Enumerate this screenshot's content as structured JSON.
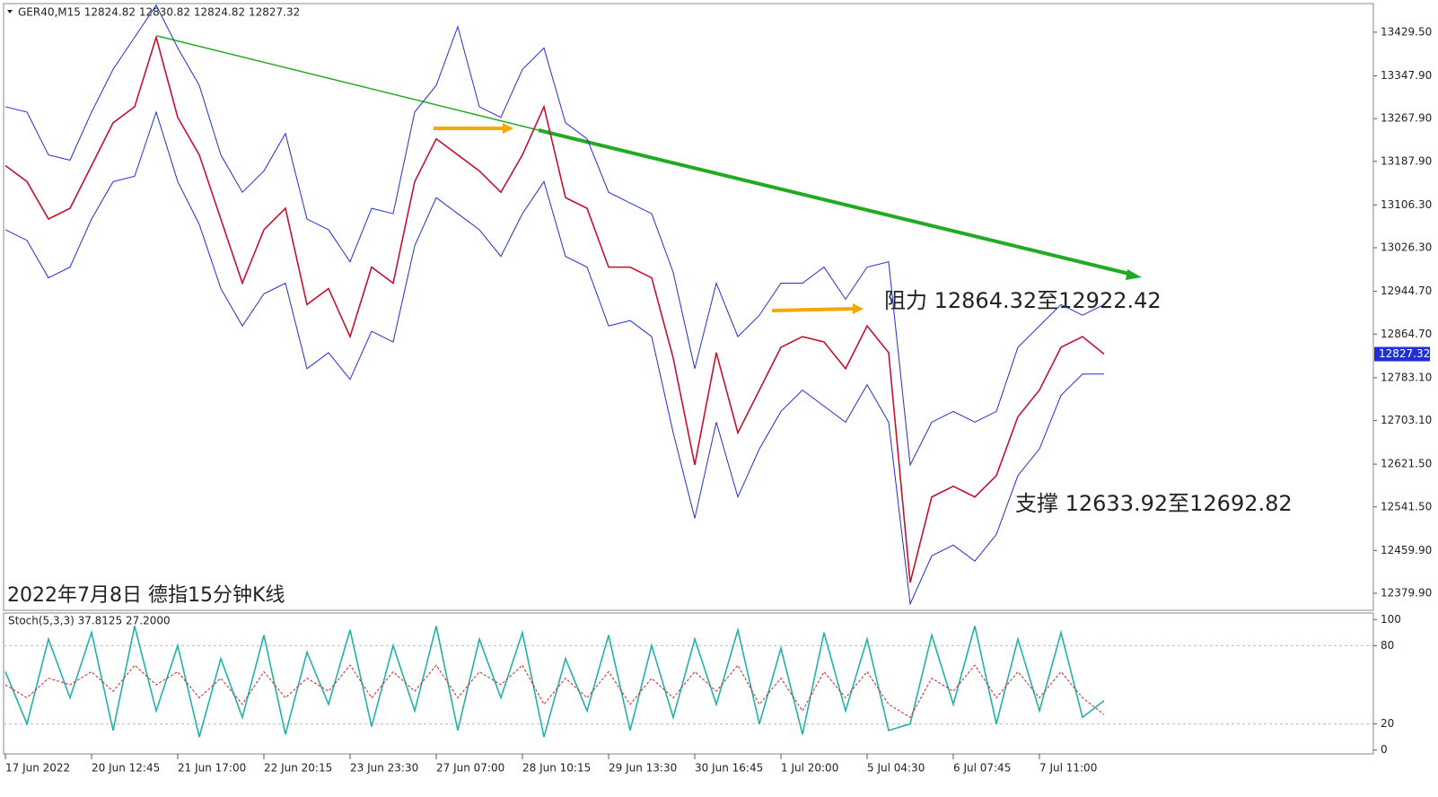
{
  "header": "GER40,M15  12824.82 12830.82 12824.82 12827.32",
  "chart_data": [
    {
      "type": "line",
      "annotations": [
        "阻力 12864.32至12922.42",
        "支撑 12633.92至12692.82",
        "2022年7月8日 德指15分钟K线"
      ],
      "ylim": [
        12348,
        13483
      ],
      "yticks": [
        {
          "value": 13429.5,
          "label": "13429.50"
        },
        {
          "value": 13347.9,
          "label": "13347.90"
        },
        {
          "value": 13267.9,
          "label": "13267.90"
        },
        {
          "value": 13187.9,
          "label": "13187.90"
        },
        {
          "value": 13106.3,
          "label": "13106.30"
        },
        {
          "value": 13026.3,
          "label": "13026.30"
        },
        {
          "value": 12944.7,
          "label": "12944.70"
        },
        {
          "value": 12864.7,
          "label": "12864.70"
        },
        {
          "value": 12783.1,
          "label": "12783.10"
        },
        {
          "value": 12703.1,
          "label": "12703.10"
        },
        {
          "value": 12621.5,
          "label": "12621.50"
        },
        {
          "value": 12541.5,
          "label": "12541.50"
        },
        {
          "value": 12459.9,
          "label": "12459.90"
        },
        {
          "value": 12379.9,
          "label": "12379.90"
        }
      ],
      "last_price": 12827.32,
      "series": [
        {
          "color": "#c8102e",
          "values": [
            13180,
            13150,
            13080,
            13100,
            13180,
            13260,
            13290,
            13420,
            13270,
            13200,
            13080,
            12960,
            13060,
            13100,
            12920,
            12950,
            12860,
            12990,
            12960,
            13150,
            13230,
            13200,
            13170,
            13130,
            13200,
            13290,
            13120,
            13100,
            12990,
            12990,
            12970,
            12820,
            12620,
            12830,
            12680,
            12760,
            12840,
            12860,
            12850,
            12800,
            12880,
            12830,
            12400,
            12560,
            12580,
            12560,
            12600,
            12710,
            12760,
            12840,
            12860,
            12827.32
          ]
        },
        {
          "color": "#1f2fd6",
          "values": [
            13290,
            13280,
            13200,
            13190,
            13280,
            13360,
            13420,
            13480,
            13400,
            13330,
            13200,
            13130,
            13170,
            13240,
            13080,
            13060,
            13000,
            13100,
            13090,
            13280,
            13330,
            13440,
            13290,
            13270,
            13360,
            13400,
            13260,
            13230,
            13130,
            13110,
            13090,
            12980,
            12800,
            12960,
            12860,
            12900,
            12960,
            12960,
            12990,
            12930,
            12990,
            13000,
            12620,
            12700,
            12720,
            12700,
            12720,
            12840,
            12880,
            12920,
            12900,
            12920
          ]
        },
        {
          "color": "#1f2fd6",
          "values": [
            13060,
            13040,
            12970,
            12990,
            13080,
            13150,
            13160,
            13280,
            13150,
            13070,
            12950,
            12880,
            12940,
            12960,
            12800,
            12830,
            12780,
            12870,
            12850,
            13030,
            13120,
            13090,
            13060,
            13010,
            13090,
            13150,
            13010,
            12990,
            12880,
            12890,
            12860,
            12680,
            12520,
            12700,
            12560,
            12650,
            12720,
            12760,
            12730,
            12700,
            12770,
            12700,
            12360,
            12450,
            12470,
            12440,
            12490,
            12600,
            12650,
            12750,
            12790,
            12790
          ]
        }
      ]
    },
    {
      "type": "line",
      "title": "Stoch(5,3,3) 37.8125 27.2000",
      "ylim": [
        -3,
        105
      ],
      "yticks": [
        0,
        20,
        80,
        100
      ],
      "levels": [
        20,
        80
      ],
      "categories": [
        "17 Jun 2022",
        null,
        null,
        null,
        "20 Jun 12:45",
        null,
        null,
        null,
        "21 Jun 17:00",
        null,
        null,
        null,
        "22 Jun 20:15",
        null,
        null,
        null,
        "23 Jun 23:30",
        null,
        null,
        null,
        "27 Jun 07:00",
        null,
        null,
        null,
        "28 Jun 10:15",
        null,
        null,
        null,
        "29 Jun 13:30",
        null,
        null,
        null,
        "30 Jun 16:45",
        null,
        null,
        null,
        "1 Jul 20:00",
        null,
        null,
        null,
        "5 Jul 04:30",
        null,
        null,
        null,
        "6 Jul 07:45",
        null,
        null,
        null,
        "7 Jul 11:00",
        null,
        null,
        null
      ],
      "series": [
        {
          "color": "#20b2aa",
          "values": [
            60,
            20,
            85,
            40,
            90,
            15,
            95,
            30,
            80,
            10,
            70,
            25,
            88,
            12,
            75,
            35,
            92,
            18,
            80,
            30,
            95,
            15,
            85,
            40,
            90,
            10,
            70,
            30,
            88,
            15,
            80,
            25,
            85,
            35,
            92,
            20,
            78,
            12,
            90,
            30,
            85,
            15,
            20,
            88,
            35,
            95,
            20,
            85,
            30,
            90,
            25,
            37.8125
          ]
        },
        {
          "color": "#d22222",
          "dashed": true,
          "values": [
            50,
            40,
            55,
            50,
            60,
            45,
            65,
            50,
            60,
            40,
            55,
            35,
            60,
            40,
            55,
            45,
            65,
            40,
            60,
            45,
            65,
            40,
            60,
            50,
            65,
            35,
            55,
            40,
            60,
            35,
            55,
            40,
            60,
            45,
            65,
            35,
            55,
            30,
            60,
            40,
            60,
            35,
            25,
            55,
            45,
            65,
            40,
            60,
            40,
            60,
            40,
            27.2
          ]
        }
      ]
    }
  ]
}
